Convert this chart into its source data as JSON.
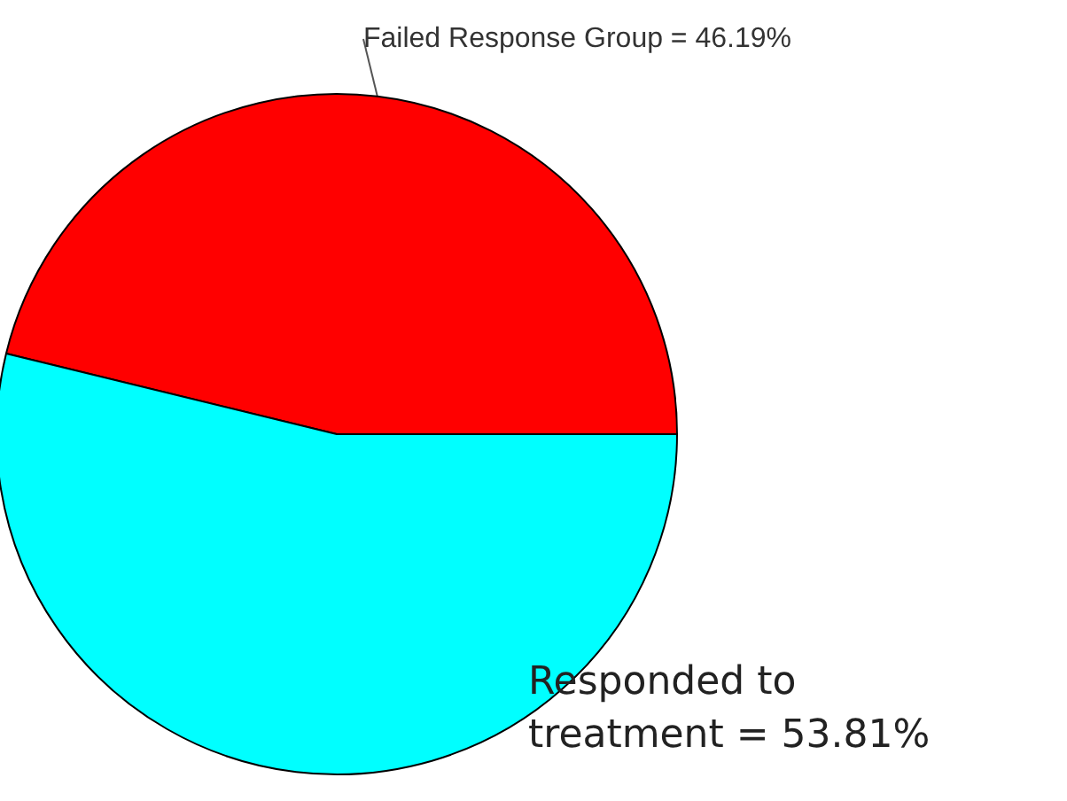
{
  "chart_data": {
    "type": "pie",
    "categories": [
      "Failed Response Group",
      "Responded to treatment"
    ],
    "values": [
      46.19,
      53.81
    ],
    "value_labels": [
      "= 46.19%",
      "= 53.81%"
    ],
    "colors": [
      "#ff0000",
      "#00ffff"
    ],
    "legend": false
  }
}
